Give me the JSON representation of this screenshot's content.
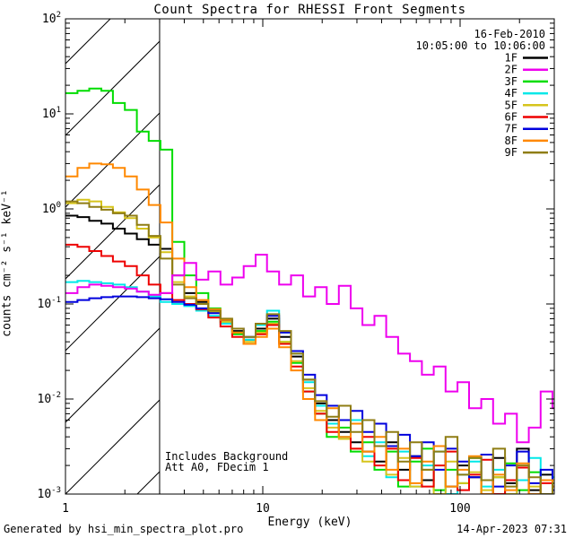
{
  "footer": {
    "left": "Generated by hsi_min_spectra_plot.pro",
    "right": "14-Apr-2023 07:31"
  },
  "chart_data": {
    "type": "line",
    "title": "Count Spectra for RHESSI Front Segments",
    "xlabel": "Energy (keV)",
    "ylabel": "counts cm⁻² s⁻¹ keV⁻¹",
    "xscale": "log",
    "yscale": "log",
    "xlim": [
      1,
      297
    ],
    "ylim": [
      0.001,
      100
    ],
    "grid": false,
    "x_ticks": [
      {
        "value": 1,
        "label": "1"
      },
      {
        "value": 10,
        "label": "10"
      },
      {
        "value": 100,
        "label": "100"
      }
    ],
    "y_tick_exponents": [
      2,
      1,
      0,
      -1,
      -2,
      -3
    ],
    "background_region": {
      "x_start": 1,
      "x_end": 3,
      "style": "diagonal-hatch"
    },
    "annotations": {
      "date": "16-Feb-2010",
      "time_range": "10:05:00 to 10:06:00",
      "note_line1": "Includes Background",
      "note_line2": "Att A0, FDecim 1"
    },
    "legend_position": "top-right-inside",
    "x": [
      1.0,
      1.15,
      1.32,
      1.52,
      1.74,
      2.0,
      2.3,
      2.64,
      3.03,
      3.48,
      4.0,
      4.6,
      5.3,
      6.1,
      7.0,
      8.0,
      9.2,
      10.5,
      12.1,
      13.9,
      16.0,
      18.4,
      21.1,
      24.3,
      27.9,
      32.0,
      36.8,
      42.2,
      48.5,
      55.7,
      64.0,
      73.5,
      84.4,
      97.0,
      111,
      128,
      147,
      169,
      194,
      223,
      256,
      294
    ],
    "series": [
      {
        "name": "1F",
        "color": "#000000",
        "values": [
          0.85,
          0.82,
          0.75,
          0.7,
          0.62,
          0.55,
          0.48,
          0.42,
          0.38,
          0.2,
          0.13,
          0.105,
          0.085,
          0.068,
          0.052,
          0.042,
          0.055,
          0.07,
          0.045,
          0.028,
          0.016,
          0.009,
          0.006,
          0.0045,
          0.0035,
          0.0028,
          0.0022,
          0.0035,
          0.0018,
          0.0025,
          0.0014,
          0.0032,
          0.0012,
          0.002,
          0.0015,
          0.001,
          0.0024,
          0.0013,
          0.003,
          0.0011,
          0.0016,
          0.0012
        ]
      },
      {
        "name": "2F",
        "color": "#ee00ee",
        "values": [
          0.13,
          0.15,
          0.16,
          0.155,
          0.15,
          0.145,
          0.135,
          0.125,
          0.13,
          0.2,
          0.27,
          0.18,
          0.22,
          0.16,
          0.19,
          0.25,
          0.33,
          0.22,
          0.16,
          0.2,
          0.12,
          0.15,
          0.1,
          0.155,
          0.09,
          0.06,
          0.075,
          0.045,
          0.03,
          0.025,
          0.018,
          0.022,
          0.012,
          0.015,
          0.008,
          0.01,
          0.0055,
          0.007,
          0.0035,
          0.005,
          0.012,
          0.008
        ]
      },
      {
        "name": "3F",
        "color": "#00dd00",
        "values": [
          16.5,
          17.5,
          18.5,
          17.5,
          13.0,
          11.0,
          6.5,
          5.2,
          4.2,
          0.45,
          0.2,
          0.13,
          0.09,
          0.065,
          0.048,
          0.038,
          0.052,
          0.065,
          0.04,
          0.024,
          0.012,
          0.007,
          0.004,
          0.005,
          0.0028,
          0.0035,
          0.0018,
          0.0028,
          0.0012,
          0.0022,
          0.003,
          0.0011,
          0.0018,
          0.0013,
          0.0024,
          0.001,
          0.0015,
          0.0021,
          0.0011,
          0.0017,
          0.001,
          0.0013
        ]
      },
      {
        "name": "4F",
        "color": "#00e8e8",
        "values": [
          0.17,
          0.175,
          0.17,
          0.165,
          0.16,
          0.15,
          0.135,
          0.12,
          0.105,
          0.1,
          0.095,
          0.085,
          0.075,
          0.062,
          0.05,
          0.042,
          0.06,
          0.085,
          0.05,
          0.03,
          0.015,
          0.0085,
          0.0055,
          0.004,
          0.006,
          0.0025,
          0.0035,
          0.0015,
          0.0028,
          0.0012,
          0.002,
          0.0028,
          0.001,
          0.0016,
          0.0022,
          0.0012,
          0.0018,
          0.001,
          0.0014,
          0.0024,
          0.001,
          0.0015
        ]
      },
      {
        "name": "5F",
        "color": "#d6c41c",
        "values": [
          1.15,
          1.25,
          1.2,
          1.05,
          0.92,
          0.8,
          0.62,
          0.5,
          0.35,
          0.17,
          0.12,
          0.1,
          0.082,
          0.065,
          0.05,
          0.04,
          0.05,
          0.062,
          0.04,
          0.025,
          0.013,
          0.0075,
          0.005,
          0.0038,
          0.003,
          0.0022,
          0.0032,
          0.0016,
          0.0024,
          0.0012,
          0.0018,
          0.001,
          0.0022,
          0.0013,
          0.0017,
          0.0011,
          0.0015,
          0.001,
          0.0019,
          0.0012,
          0.001,
          0.0014
        ]
      },
      {
        "name": "6F",
        "color": "#ee0000",
        "values": [
          0.42,
          0.4,
          0.36,
          0.32,
          0.28,
          0.25,
          0.2,
          0.16,
          0.13,
          0.11,
          0.1,
          0.088,
          0.072,
          0.058,
          0.045,
          0.038,
          0.048,
          0.06,
          0.038,
          0.022,
          0.012,
          0.007,
          0.0045,
          0.006,
          0.003,
          0.004,
          0.002,
          0.003,
          0.0014,
          0.0024,
          0.0012,
          0.002,
          0.0028,
          0.0011,
          0.0016,
          0.0023,
          0.001,
          0.0014,
          0.0019,
          0.001,
          0.0013,
          0.0011
        ]
      },
      {
        "name": "7F",
        "color": "#0000dd",
        "values": [
          0.105,
          0.11,
          0.115,
          0.118,
          0.12,
          0.12,
          0.118,
          0.115,
          0.112,
          0.105,
          0.098,
          0.09,
          0.08,
          0.068,
          0.055,
          0.045,
          0.062,
          0.075,
          0.05,
          0.032,
          0.018,
          0.011,
          0.0085,
          0.006,
          0.0075,
          0.0045,
          0.0055,
          0.0032,
          0.0042,
          0.0025,
          0.0035,
          0.0018,
          0.003,
          0.0022,
          0.0015,
          0.0026,
          0.0012,
          0.002,
          0.0028,
          0.0013,
          0.0018,
          0.0011
        ]
      },
      {
        "name": "8F",
        "color": "#ff8800",
        "values": [
          2.2,
          2.7,
          3.0,
          2.95,
          2.7,
          2.2,
          1.6,
          1.1,
          0.72,
          0.3,
          0.15,
          0.11,
          0.088,
          0.068,
          0.05,
          0.038,
          0.045,
          0.055,
          0.035,
          0.02,
          0.01,
          0.006,
          0.008,
          0.004,
          0.0055,
          0.0028,
          0.004,
          0.0018,
          0.003,
          0.0013,
          0.0022,
          0.0032,
          0.0012,
          0.0018,
          0.0025,
          0.001,
          0.0016,
          0.0011,
          0.0021,
          0.001,
          0.0014,
          0.0012
        ]
      },
      {
        "name": "9F",
        "color": "#8f7d14",
        "values": [
          1.2,
          1.15,
          1.05,
          0.98,
          0.9,
          0.85,
          0.68,
          0.52,
          0.3,
          0.16,
          0.115,
          0.1,
          0.085,
          0.07,
          0.055,
          0.045,
          0.062,
          0.078,
          0.052,
          0.03,
          0.016,
          0.0095,
          0.0065,
          0.0085,
          0.0045,
          0.006,
          0.0032,
          0.0045,
          0.0022,
          0.0035,
          0.0018,
          0.0028,
          0.004,
          0.0016,
          0.0024,
          0.0014,
          0.003,
          0.0012,
          0.002,
          0.0015,
          0.001,
          0.0013
        ]
      }
    ]
  }
}
